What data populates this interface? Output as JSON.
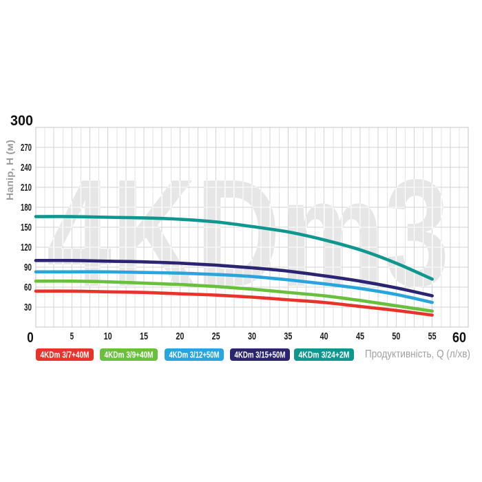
{
  "chart_data": {
    "type": "line",
    "watermark": "4KDm3",
    "watermark_color": "#e6e6e6",
    "xlabel": "Продуктивність, Q (л/хв)",
    "ylabel": "Напір, Н (м)",
    "xlim": [
      0,
      60
    ],
    "ylim": [
      0,
      300
    ],
    "x_ticks": [
      0,
      5,
      10,
      15,
      20,
      25,
      30,
      35,
      40,
      45,
      50,
      55,
      60
    ],
    "y_ticks": [
      0,
      30,
      60,
      90,
      120,
      150,
      180,
      210,
      240,
      270,
      300
    ],
    "grid": true,
    "legend_position": "bottom",
    "axis_label_color": "#9d9d9d",
    "tick_label_color": "#1d1d1d",
    "x": [
      0,
      5,
      10,
      15,
      20,
      25,
      30,
      35,
      40,
      45,
      50,
      55
    ],
    "series": [
      {
        "name": "4KDm 3/7+40M",
        "color": "#e8332a",
        "values": [
          54,
          54,
          53,
          52,
          50,
          48,
          45,
          41,
          37,
          31,
          25,
          18
        ]
      },
      {
        "name": "4KDm 3/9+40M",
        "color": "#68c03c",
        "values": [
          69,
          69,
          68,
          66,
          64,
          61,
          57,
          52,
          47,
          40,
          32,
          24
        ]
      },
      {
        "name": "4KDm 3/12+50M",
        "color": "#29a4dc",
        "values": [
          83,
          83,
          83,
          82,
          81,
          79,
          76,
          71,
          65,
          58,
          49,
          37
        ]
      },
      {
        "name": "4KDm 3/15+50M",
        "color": "#2a2472",
        "values": [
          100,
          100,
          99,
          98,
          96,
          93,
          89,
          84,
          77,
          69,
          59,
          47
        ]
      },
      {
        "name": "4KDm 3/24+2M",
        "color": "#0f968e",
        "values": [
          166,
          166,
          165,
          164,
          162,
          158,
          151,
          143,
          131,
          116,
          96,
          72
        ]
      }
    ]
  }
}
